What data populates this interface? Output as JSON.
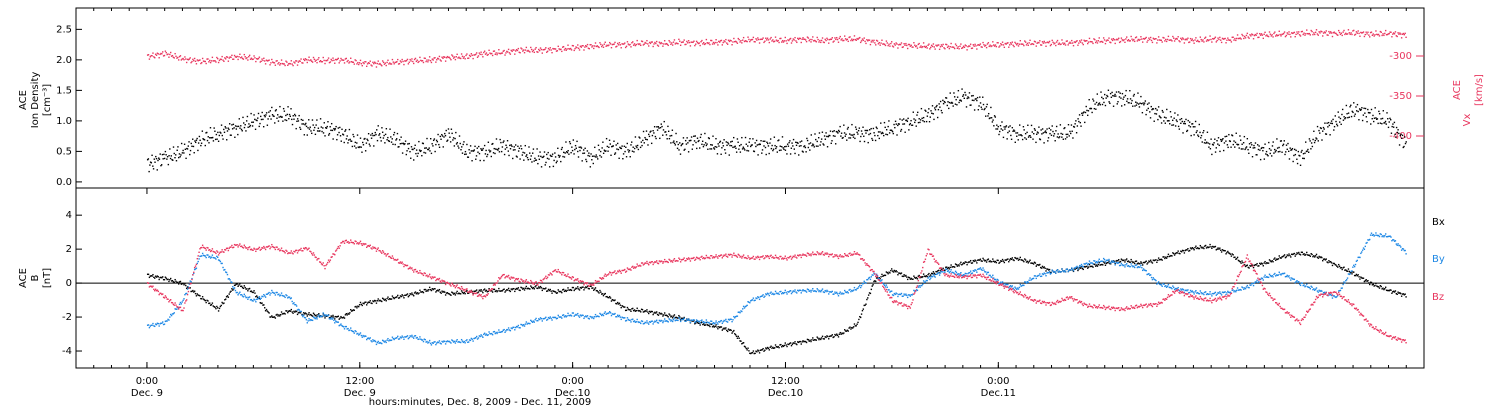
{
  "chart_data": [
    {
      "type": "scatter",
      "panel": "top",
      "ylabel_left": [
        "ACE",
        "Ion Density",
        "[cm⁻³]"
      ],
      "ylabel_right": [
        "Vx",
        "ACE",
        "[km/s]"
      ],
      "ylim_left": [
        -0.1,
        2.85
      ],
      "ylim_right": [
        -465,
        -240
      ],
      "yticks_left": [
        "0.0",
        "0.5",
        "1.0",
        "1.5",
        "2.0",
        "2.5"
      ],
      "yticks_right": [
        "-300",
        "-350",
        "-400"
      ],
      "series": [
        {
          "name": "Ion Density",
          "color": "#000000",
          "axis": "left",
          "x_hours": [
            0,
            1,
            2,
            3,
            4,
            5,
            6,
            7,
            8,
            9,
            10,
            11,
            12,
            13,
            14,
            15,
            16,
            17,
            18,
            19,
            20,
            21,
            22,
            23,
            24,
            25,
            26,
            27,
            28,
            29,
            30,
            31,
            32,
            33,
            34,
            35,
            36,
            37,
            38,
            39,
            40,
            41,
            42,
            43,
            44,
            45,
            46,
            47,
            48,
            49,
            50,
            51,
            52,
            53,
            54,
            55,
            56,
            57,
            58,
            59,
            60,
            61,
            62,
            63,
            64,
            65,
            66,
            67,
            68,
            69,
            70,
            71
          ],
          "values": [
            0.3,
            0.4,
            0.5,
            0.7,
            0.8,
            0.9,
            1.0,
            1.1,
            1.1,
            0.9,
            0.9,
            0.8,
            0.6,
            0.8,
            0.7,
            0.5,
            0.6,
            0.8,
            0.5,
            0.5,
            0.6,
            0.5,
            0.4,
            0.4,
            0.6,
            0.4,
            0.6,
            0.5,
            0.7,
            0.9,
            0.6,
            0.7,
            0.6,
            0.6,
            0.6,
            0.6,
            0.6,
            0.6,
            0.7,
            0.8,
            0.8,
            0.8,
            0.9,
            1.0,
            1.1,
            1.3,
            1.4,
            1.3,
            0.9,
            0.8,
            0.8,
            0.8,
            0.8,
            1.2,
            1.4,
            1.4,
            1.3,
            1.1,
            1.0,
            0.9,
            0.6,
            0.7,
            0.6,
            0.5,
            0.6,
            0.4,
            0.8,
            1.0,
            1.2,
            1.1,
            1.0,
            0.6
          ]
        },
        {
          "name": "Vx",
          "color": "#e8365e",
          "axis": "right",
          "x_hours": [
            0,
            1,
            2,
            3,
            4,
            5,
            6,
            7,
            8,
            9,
            10,
            11,
            12,
            13,
            14,
            15,
            16,
            17,
            18,
            19,
            20,
            21,
            22,
            23,
            24,
            25,
            26,
            27,
            28,
            29,
            30,
            31,
            32,
            33,
            34,
            35,
            36,
            37,
            38,
            39,
            40,
            41,
            42,
            43,
            44,
            45,
            46,
            47,
            48,
            49,
            50,
            51,
            52,
            53,
            54,
            55,
            56,
            57,
            58,
            59,
            60,
            61,
            62,
            63,
            64,
            65,
            66,
            67,
            68,
            69,
            70,
            71
          ],
          "values": [
            -300,
            -296,
            -303,
            -306,
            -304,
            -300,
            -302,
            -307,
            -309,
            -304,
            -305,
            -304,
            -308,
            -309,
            -307,
            -305,
            -304,
            -301,
            -300,
            -296,
            -295,
            -292,
            -292,
            -291,
            -289,
            -287,
            -285,
            -285,
            -283,
            -284,
            -282,
            -283,
            -282,
            -281,
            -279,
            -279,
            -280,
            -278,
            -280,
            -278,
            -278,
            -282,
            -285,
            -286,
            -287,
            -287,
            -288,
            -286,
            -285,
            -284,
            -283,
            -283,
            -283,
            -281,
            -280,
            -279,
            -278,
            -279,
            -278,
            -280,
            -278,
            -279,
            -274,
            -273,
            -272,
            -271,
            -270,
            -271,
            -270,
            -272,
            -271,
            -273
          ]
        }
      ]
    },
    {
      "type": "scatter",
      "panel": "bottom",
      "ylabel": [
        "ACE",
        "B",
        "[nT]"
      ],
      "ylim": [
        -5,
        5.6
      ],
      "yticks": [
        "-4",
        "-2",
        "0",
        "2",
        "4"
      ],
      "zero_line": true,
      "series": [
        {
          "name": "Bx",
          "color": "#000000",
          "x_hours": [
            0,
            1,
            2,
            3,
            4,
            5,
            6,
            7,
            8,
            9,
            10,
            11,
            12,
            13,
            14,
            15,
            16,
            17,
            18,
            19,
            20,
            21,
            22,
            23,
            24,
            25,
            26,
            27,
            28,
            29,
            30,
            31,
            32,
            33,
            34,
            35,
            36,
            37,
            38,
            39,
            40,
            41,
            42,
            43,
            44,
            45,
            46,
            47,
            48,
            49,
            50,
            51,
            52,
            53,
            54,
            55,
            56,
            57,
            58,
            59,
            60,
            61,
            62,
            63,
            64,
            65,
            66,
            67,
            68,
            69,
            70,
            71
          ],
          "values": [
            0.5,
            0.3,
            0.0,
            -0.8,
            -1.5,
            0.0,
            -0.5,
            -2.0,
            -1.6,
            -1.8,
            -1.9,
            -2.0,
            -1.2,
            -1.0,
            -0.8,
            -0.6,
            -0.3,
            -0.6,
            -0.5,
            -0.4,
            -0.4,
            -0.3,
            -0.2,
            -0.5,
            -0.3,
            -0.2,
            -0.8,
            -1.5,
            -1.6,
            -1.8,
            -2.0,
            -2.3,
            -2.5,
            -2.8,
            -4.1,
            -3.8,
            -3.6,
            -3.4,
            -3.2,
            -3.0,
            -2.4,
            0.2,
            0.8,
            0.3,
            0.5,
            0.9,
            1.2,
            1.4,
            1.3,
            1.5,
            1.2,
            0.7,
            0.8,
            1.0,
            1.2,
            1.4,
            1.2,
            1.4,
            1.8,
            2.1,
            2.2,
            1.8,
            1.0,
            1.2,
            1.6,
            1.8,
            1.6,
            1.1,
            0.6,
            0.0,
            -0.4,
            -0.7
          ]
        },
        {
          "name": "By",
          "color": "#1e88e5",
          "x_hours": [
            0,
            1,
            2,
            3,
            4,
            5,
            6,
            7,
            8,
            9,
            10,
            11,
            12,
            13,
            14,
            15,
            16,
            17,
            18,
            19,
            20,
            21,
            22,
            23,
            24,
            25,
            26,
            27,
            28,
            29,
            30,
            31,
            32,
            33,
            34,
            35,
            36,
            37,
            38,
            39,
            40,
            41,
            42,
            43,
            44,
            45,
            46,
            47,
            48,
            49,
            50,
            51,
            52,
            53,
            54,
            55,
            56,
            57,
            58,
            59,
            60,
            61,
            62,
            63,
            64,
            65,
            66,
            67,
            68,
            69,
            70,
            71
          ],
          "values": [
            -2.5,
            -2.3,
            -1.0,
            1.7,
            1.5,
            -0.5,
            -1.0,
            -0.5,
            -0.8,
            -2.2,
            -1.8,
            -2.5,
            -3.0,
            -3.5,
            -3.2,
            -3.1,
            -3.5,
            -3.4,
            -3.4,
            -3.0,
            -2.8,
            -2.5,
            -2.1,
            -2.0,
            -1.8,
            -2.0,
            -1.7,
            -2.1,
            -2.3,
            -2.2,
            -2.1,
            -2.2,
            -2.3,
            -2.1,
            -1.0,
            -0.6,
            -0.5,
            -0.4,
            -0.4,
            -0.6,
            -0.3,
            0.6,
            -0.6,
            -0.7,
            0.3,
            0.8,
            0.5,
            0.9,
            0.1,
            -0.3,
            0.4,
            0.7,
            0.8,
            1.2,
            1.4,
            1.1,
            1.0,
            0.0,
            -0.3,
            -0.5,
            -0.6,
            -0.5,
            -0.2,
            0.4,
            0.6,
            0.0,
            -0.4,
            -0.8,
            1.0,
            2.9,
            2.8,
            1.8
          ]
        },
        {
          "name": "Bz",
          "color": "#e8365e",
          "x_hours": [
            0,
            1,
            2,
            3,
            4,
            5,
            6,
            7,
            8,
            9,
            10,
            11,
            12,
            13,
            14,
            15,
            16,
            17,
            18,
            19,
            20,
            21,
            22,
            23,
            24,
            25,
            26,
            27,
            28,
            29,
            30,
            31,
            32,
            33,
            34,
            35,
            36,
            37,
            38,
            39,
            40,
            41,
            42,
            43,
            44,
            45,
            46,
            47,
            48,
            49,
            50,
            51,
            52,
            53,
            54,
            55,
            56,
            57,
            58,
            59,
            60,
            61,
            62,
            63,
            64,
            65,
            66,
            67,
            68,
            69,
            70,
            71
          ],
          "values": [
            0.0,
            -0.8,
            -1.6,
            2.2,
            1.8,
            2.3,
            2.0,
            2.2,
            1.8,
            2.1,
            1.0,
            2.5,
            2.4,
            2.0,
            1.4,
            0.8,
            0.4,
            0.0,
            -0.4,
            -0.8,
            0.5,
            0.2,
            0.0,
            0.8,
            0.3,
            -0.1,
            0.6,
            0.8,
            1.2,
            1.3,
            1.4,
            1.5,
            1.6,
            1.7,
            1.5,
            1.6,
            1.5,
            1.7,
            1.8,
            1.6,
            1.8,
            0.6,
            -1.0,
            -1.4,
            2.0,
            0.5,
            0.4,
            0.5,
            0.0,
            -0.5,
            -1.0,
            -1.2,
            -0.8,
            -1.3,
            -1.4,
            -1.5,
            -1.3,
            -1.2,
            -0.4,
            -0.8,
            -1.0,
            -0.7,
            1.6,
            -0.4,
            -1.5,
            -2.3,
            -0.7,
            -0.5,
            -1.3,
            -2.5,
            -3.1,
            -3.4
          ]
        }
      ],
      "legend": [
        "Bx",
        "By",
        "Bz"
      ],
      "legend_placement": "right"
    }
  ],
  "axis": {
    "x_start": "Dec. 8, 2009 20:00",
    "major_ticks": [
      {
        "time": "0:00",
        "date": "Dec. 9"
      },
      {
        "time": "12:00",
        "date": "Dec. 9"
      },
      {
        "time": "0:00",
        "date": "Dec.10"
      },
      {
        "time": "12:00",
        "date": "Dec.10"
      },
      {
        "time": "0:00",
        "date": "Dec.11"
      }
    ],
    "xlabel": "hours:minutes, Dec. 8, 2009 - Dec. 11, 2009"
  },
  "colors": {
    "ion_density": "#000000",
    "vx": "#e8365e",
    "bx": "#000000",
    "by": "#1e88e5",
    "bz": "#e8365e",
    "frame": "#000000"
  }
}
